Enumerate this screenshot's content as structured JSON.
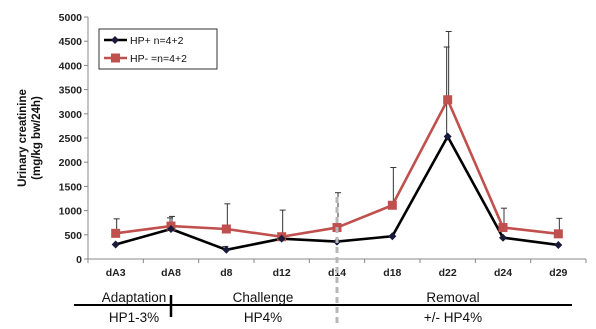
{
  "chart_data": {
    "type": "line",
    "title": "",
    "ylabel": [
      "Urinary creatinine",
      "(mg/kg bw/24h)"
    ],
    "xlabel": "",
    "ylim": [
      0,
      5000
    ],
    "yticks": [
      0,
      500,
      1000,
      1500,
      2000,
      2500,
      3000,
      3500,
      4000,
      4500,
      5000
    ],
    "categories": [
      "dA3",
      "dA8",
      "d8",
      "d12",
      "d14",
      "d18",
      "d22",
      "d24",
      "d29"
    ],
    "grid": false,
    "legend_position": "top-left",
    "series": [
      {
        "name": "HP+  n=4+2",
        "color": "#000000",
        "marker": "diamond",
        "values": [
          300,
          620,
          190,
          420,
          360,
          470,
          2530,
          440,
          290
        ],
        "error_upper": [
          null,
          850,
          260,
          null,
          null,
          null,
          4380,
          null,
          null
        ]
      },
      {
        "name": "HP- =n=4+2",
        "color": "#c0504d",
        "marker": "square",
        "values": [
          530,
          680,
          620,
          460,
          650,
          1110,
          3290,
          650,
          520
        ],
        "error_upper": [
          830,
          880,
          1140,
          1010,
          1370,
          1890,
          4700,
          1050,
          840
        ]
      }
    ],
    "phases": [
      {
        "name": "Adaptation",
        "diet": "HP1-3%"
      },
      {
        "name": "Challenge",
        "diet": "HP4%"
      },
      {
        "name": "Removal",
        "diet": "+/-  HP4%"
      }
    ]
  }
}
